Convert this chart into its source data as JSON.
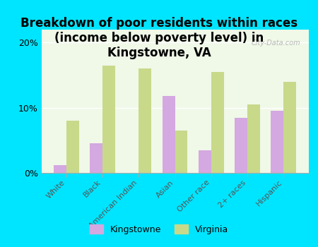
{
  "title": "Breakdown of poor residents within races\n(income below poverty level) in\nKingstowne, VA",
  "categories": [
    "White",
    "Black",
    "American Indian",
    "Asian",
    "Other race",
    "2+ races",
    "Hispanic"
  ],
  "kingstowne": [
    1.2,
    4.5,
    0.0,
    11.8,
    3.5,
    8.5,
    9.5
  ],
  "virginia": [
    8.0,
    16.5,
    16.0,
    6.5,
    15.5,
    10.5,
    14.0
  ],
  "kingstowne_color": "#d4a8e0",
  "virginia_color": "#c8d98a",
  "background_color": "#00e5ff",
  "plot_bg_color": "#dff0d8",
  "ylim": [
    0,
    22
  ],
  "yticks": [
    0,
    10,
    20
  ],
  "ytick_labels": [
    "0%",
    "10%",
    "20%"
  ],
  "bar_width": 0.35,
  "title_fontsize": 12,
  "watermark": "City-Data.com",
  "legend_labels": [
    "Kingstowne",
    "Virginia"
  ]
}
